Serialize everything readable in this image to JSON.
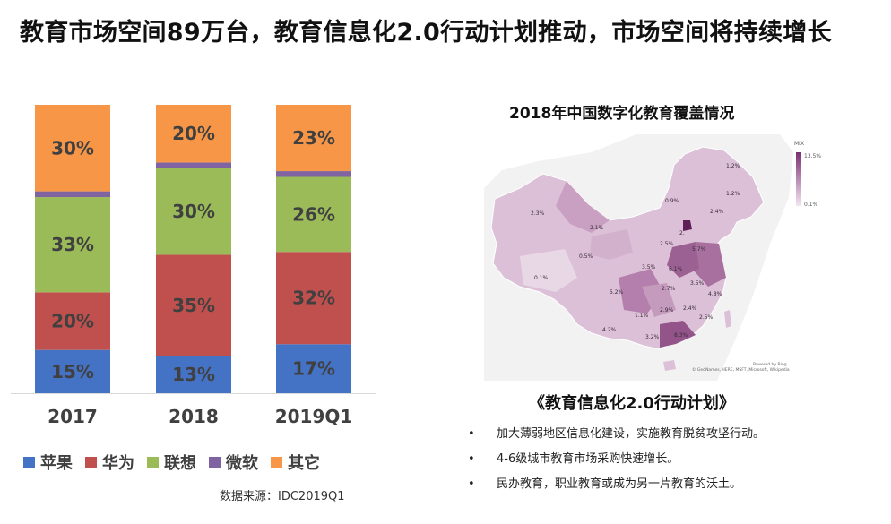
{
  "page_title": "教育市场空间89万台，教育信息化2.0行动计划推动，市场空间将持续增长",
  "chart_data": {
    "type": "bar",
    "stacked": true,
    "normalized": true,
    "categories": [
      "2017",
      "2018",
      "2019Q1"
    ],
    "series": [
      {
        "name": "苹果",
        "color": "#4472C4",
        "values": [
          15,
          13,
          17
        ],
        "labels": [
          "15%",
          "13%",
          "17%"
        ]
      },
      {
        "name": "华为",
        "color": "#C0504D",
        "values": [
          20,
          35,
          32
        ],
        "labels": [
          "20%",
          "35%",
          "32%"
        ]
      },
      {
        "name": "联想",
        "color": "#9BBB59",
        "values": [
          33,
          30,
          26
        ],
        "labels": [
          "33%",
          "30%",
          "26%"
        ]
      },
      {
        "name": "微软",
        "color": "#8064A2",
        "values": [
          2,
          2,
          2
        ],
        "labels": [
          "",
          "",
          ""
        ]
      },
      {
        "name": "其它",
        "color": "#F79646",
        "values": [
          30,
          20,
          23
        ],
        "labels": [
          "30%",
          "20%",
          "23%"
        ]
      }
    ],
    "ylim": [
      0,
      100
    ],
    "source": "数据来源：IDC2019Q1"
  },
  "map": {
    "title": "2018年中国数字化教育覆盖情况",
    "legend_title": "MIX",
    "legend_max": "13.5%",
    "legend_min": "0.1%",
    "credit_line1": "Powered by Bing",
    "credit_line2": "© GeoNames, HERE, MSFT, Microsoft, Wikipedia",
    "labels": [
      "1.2%",
      "1.2%",
      "0.9%",
      "2.4%",
      "2.3%",
      "2.1%",
      "2.",
      "2.5%",
      "5.7%",
      "0.5%",
      "3.5%",
      "6.1%",
      "0.1%",
      "2.7%",
      "3.5%",
      "4.8%",
      "5.2%",
      "2.4%",
      "2.9%",
      "1.1%",
      "2.5%",
      "4.2%",
      "3.2%",
      "8.3%"
    ]
  },
  "plan": {
    "title": "《教育信息化2.0行动计划》",
    "items": [
      "加大薄弱地区信息化建设，实施教育脱贫攻坚行动。",
      "4-6级城市教育市场采购快速增长。",
      "民办教育，职业教育或成为另一片教育的沃土。"
    ]
  }
}
